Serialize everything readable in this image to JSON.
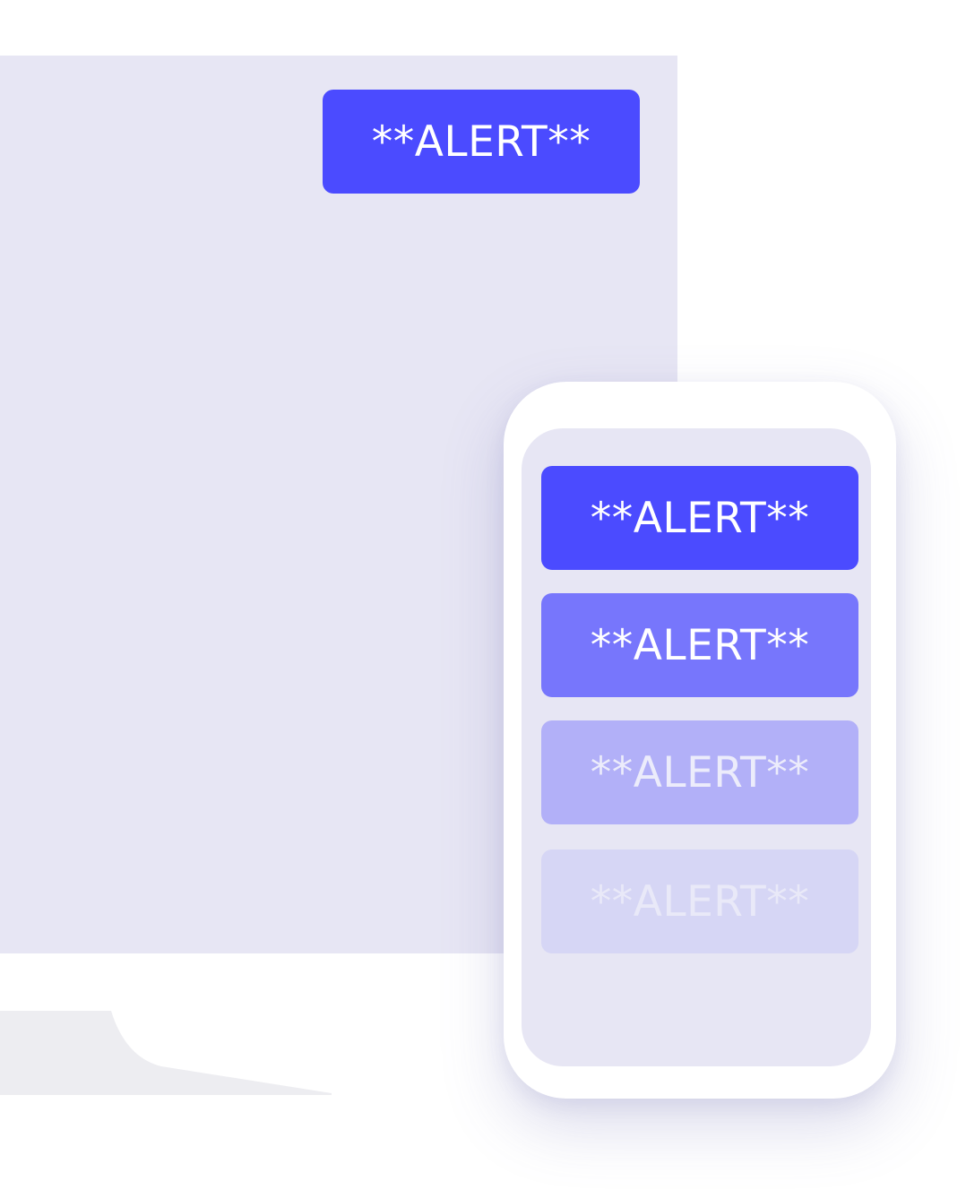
{
  "desktop": {
    "alert_label": "**ALERT**",
    "screen_color": "#e7e6f4",
    "alert_color": "#4b4bff"
  },
  "phone": {
    "alerts": [
      {
        "label": "**ALERT**",
        "color": "#4b4bff"
      },
      {
        "label": "**ALERT**",
        "color": "#7776fc"
      },
      {
        "label": "**ALERT**",
        "color": "#b2b0f8"
      },
      {
        "label": "**ALERT**",
        "color": "#d6d6f5"
      }
    ]
  }
}
